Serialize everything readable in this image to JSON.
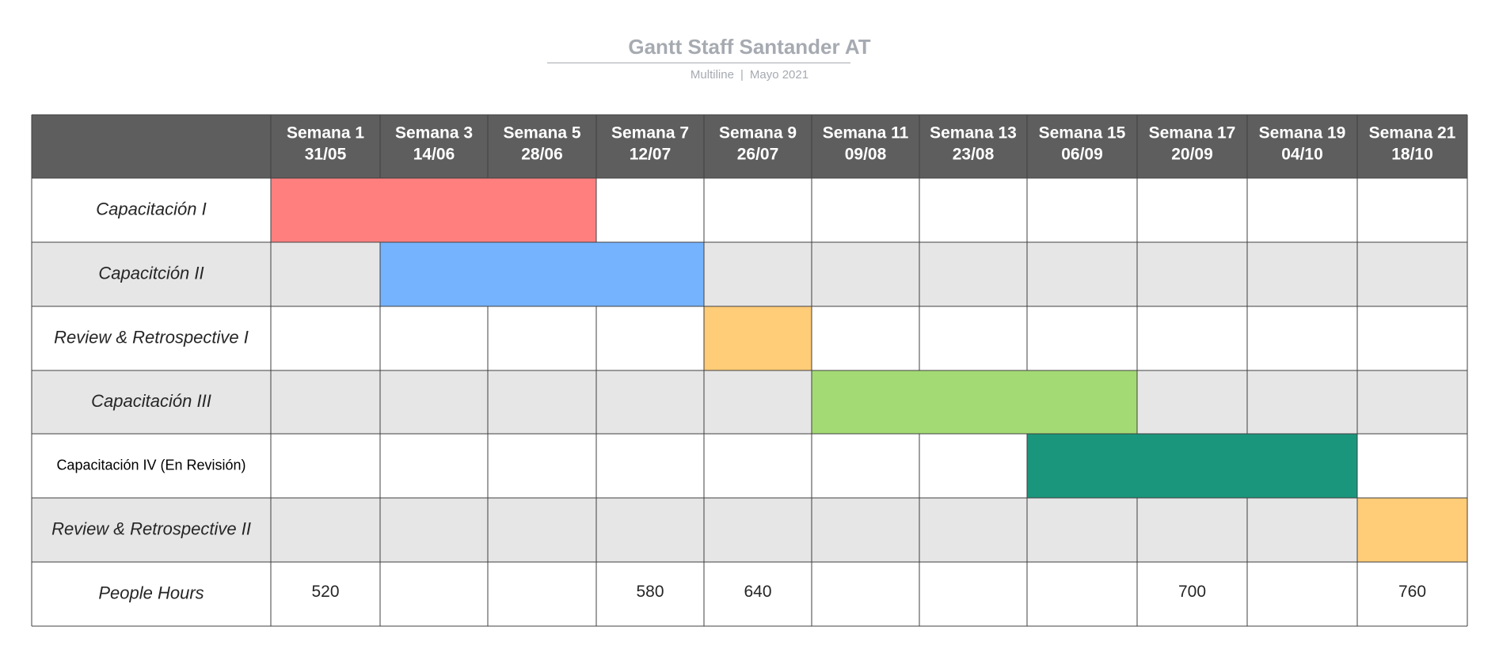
{
  "header": {
    "title": "Gantt Staff Santander AT",
    "subtitle_left": "Multiline",
    "subtitle_sep": "|",
    "subtitle_right": "Mayo 2021"
  },
  "colors": {
    "header_bg": "#5e5e5e",
    "row_alt": "#e6e6e6",
    "row_white": "#ffffff",
    "grid": "#404040",
    "red": "#ff7f7f",
    "blue": "#76b3ff",
    "orange": "#ffcc77",
    "green": "#a4da74",
    "teal": "#1a967c"
  },
  "chart_data": {
    "type": "gantt",
    "columns": [
      {
        "week": "Semana 1",
        "date": "31/05"
      },
      {
        "week": "Semana 3",
        "date": "14/06"
      },
      {
        "week": "Semana 5",
        "date": "28/06"
      },
      {
        "week": "Semana 7",
        "date": "12/07"
      },
      {
        "week": "Semana 9",
        "date": "26/07"
      },
      {
        "week": "Semana 11",
        "date": "09/08"
      },
      {
        "week": "Semana 13",
        "date": "23/08"
      },
      {
        "week": "Semana 15",
        "date": "06/09"
      },
      {
        "week": "Semana 17",
        "date": "20/09"
      },
      {
        "week": "Semana 19",
        "date": "04/10"
      },
      {
        "week": "Semana 21",
        "date": "18/10"
      }
    ],
    "tasks": [
      {
        "name": "Capacitación I",
        "start": "Semana 1",
        "end": "Semana 5",
        "color": "#ff7f7f"
      },
      {
        "name": "Capacitción II",
        "start": "Semana 3",
        "end": "Semana 7",
        "color": "#76b3ff"
      },
      {
        "name": "Review & Retrospective I",
        "start": "Semana 9",
        "end": "Semana 9",
        "color": "#ffcc77"
      },
      {
        "name": "Capacitación III",
        "start": "Semana 11",
        "end": "Semana 15",
        "color": "#a4da74"
      },
      {
        "name": "Capacitación IV (En Revisión)",
        "start": "Semana 15",
        "end": "Semana 19",
        "color": "#1a967c",
        "plain": true
      },
      {
        "name": "Review & Retrospective II",
        "start": "Semana 21",
        "end": "Semana 21",
        "color": "#ffcc77"
      }
    ],
    "hours_row": {
      "label": "People Hours",
      "values": [
        "520",
        "",
        "",
        "580",
        "640",
        "",
        "",
        "",
        "700",
        "",
        "760"
      ]
    }
  }
}
